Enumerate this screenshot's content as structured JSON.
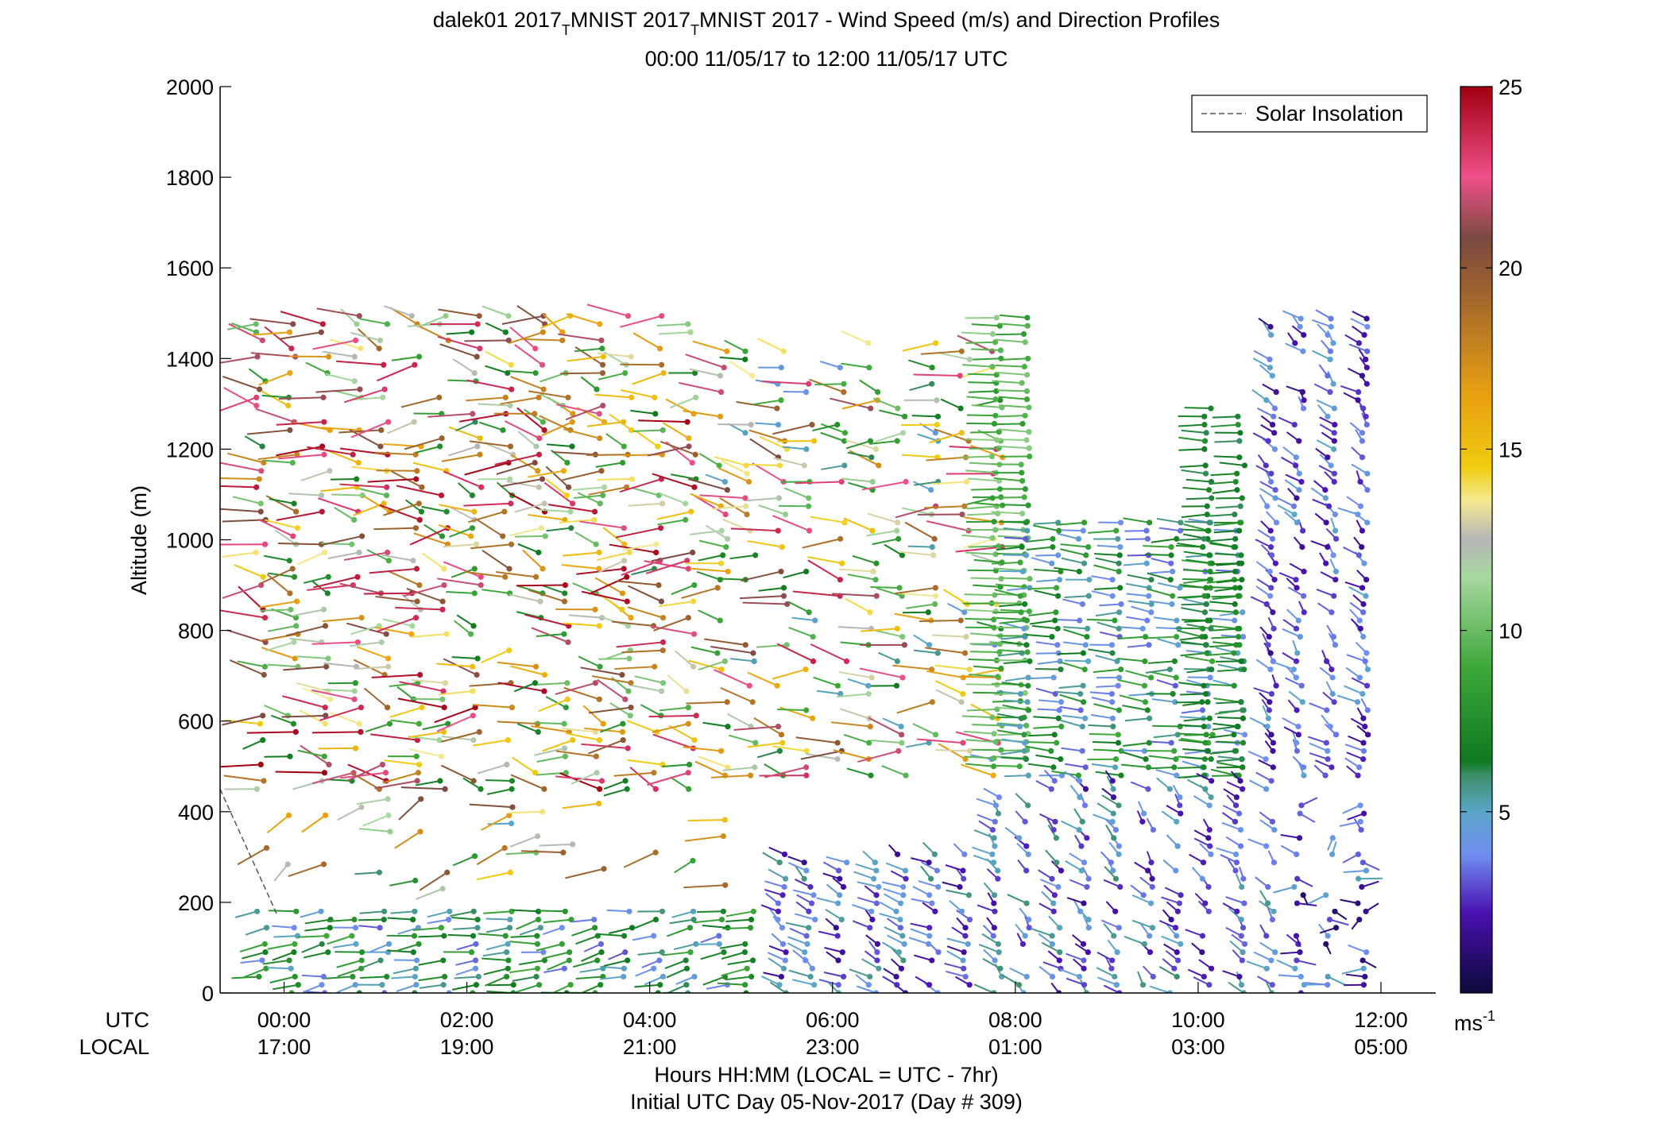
{
  "chart_data": {
    "type": "wind-barb-profile",
    "title_line1": "dalek01 2017",
    "title_sub1": "T",
    "title_mid": "MNIST 2017",
    "title_sub2": "T",
    "title_end": "MNIST 2017 - Wind Speed (m/s) and Direction Profiles",
    "subtitle": "00:00 11/05/17 to 12:00 11/05/17  UTC",
    "ylabel": "Altitude (m)",
    "ylim": [
      0,
      2000
    ],
    "yticks": [
      "0",
      "200",
      "400",
      "600",
      "800",
      "1000",
      "1200",
      "1400",
      "1600",
      "1800",
      "2000"
    ],
    "xlim_hours": [
      -0.7,
      12.6
    ],
    "xticks_utc": [
      "00:00",
      "02:00",
      "04:00",
      "06:00",
      "08:00",
      "10:00",
      "12:00"
    ],
    "xticks_local": [
      "17:00",
      "19:00",
      "21:00",
      "23:00",
      "01:00",
      "03:00",
      "05:00"
    ],
    "utc_label": "UTC",
    "local_label": "LOCAL",
    "xlabel_line1": "Hours HH:MM  (LOCAL = UTC - 7hr)",
    "xlabel_line2": "Initial UTC Day 05-Nov-2017 (Day # 309)",
    "legend": {
      "entry": "Solar Insolation",
      "placement": "top-right",
      "line_color": "#555555"
    },
    "colorbar": {
      "ticks": [
        "5",
        "10",
        "15",
        "20",
        "25"
      ],
      "unit_base": "ms",
      "unit_exp": "-1",
      "range": [
        0,
        25
      ],
      "stops": [
        {
          "v": 0,
          "c": "#0b0a3a"
        },
        {
          "v": 2.2,
          "c": "#4a10b0"
        },
        {
          "v": 3.8,
          "c": "#6f8df0"
        },
        {
          "v": 5.0,
          "c": "#5aa6c8"
        },
        {
          "v": 6.0,
          "c": "#3d8f6a"
        },
        {
          "v": 6.4,
          "c": "#0f7a20"
        },
        {
          "v": 9.0,
          "c": "#3ea83a"
        },
        {
          "v": 11.5,
          "c": "#a8d8a0"
        },
        {
          "v": 12.5,
          "c": "#b5b5b5"
        },
        {
          "v": 13.6,
          "c": "#f5ea90"
        },
        {
          "v": 14.5,
          "c": "#f0cc10"
        },
        {
          "v": 16.5,
          "c": "#e8a010"
        },
        {
          "v": 19.5,
          "c": "#9a6030"
        },
        {
          "v": 20.8,
          "c": "#7a4a40"
        },
        {
          "v": 22.5,
          "c": "#f0508a"
        },
        {
          "v": 25,
          "c": "#a00010"
        }
      ]
    },
    "solar_insolation": {
      "x": [
        -0.7,
        -0.07
      ],
      "y": [
        450,
        170
      ]
    },
    "profile_times_hours": [
      -0.25,
      0.1,
      0.45,
      0.8,
      1.1,
      1.45,
      1.75,
      2.1,
      2.45,
      2.8,
      3.1,
      3.45,
      3.75,
      4.1,
      4.45,
      4.8,
      5.1,
      5.45,
      5.75,
      6.1,
      6.45,
      6.75,
      7.1,
      7.45,
      7.8,
      8.1,
      8.45,
      8.75,
      9.1,
      9.45,
      9.75,
      10.1,
      10.45,
      10.8,
      11.1,
      11.45,
      11.8
    ],
    "regimes": [
      {
        "t0": -0.3,
        "t1": 4.6,
        "z0": 450,
        "z1": 1500,
        "spd": [
          6,
          25
        ],
        "dir": [
          230,
          330
        ],
        "density": 0.55
      },
      {
        "t0": 4.6,
        "t1": 7.8,
        "z0": 480,
        "z1": 1450,
        "spd": [
          4,
          24
        ],
        "dir": [
          240,
          320
        ],
        "density": 0.45
      },
      {
        "t0": 7.6,
        "t1": 8.1,
        "z0": 500,
        "z1": 1490,
        "spd": [
          8,
          11
        ],
        "dir": [
          265,
          280
        ],
        "density": 0.95
      },
      {
        "t0": 8.1,
        "t1": 10.7,
        "z0": 480,
        "z1": 1050,
        "spd": [
          3,
          9
        ],
        "dir": [
          255,
          300
        ],
        "density": 0.9
      },
      {
        "t0": 9.9,
        "t1": 10.7,
        "z0": 480,
        "z1": 1300,
        "spd": [
          6,
          8
        ],
        "dir": [
          255,
          285
        ],
        "density": 0.9
      },
      {
        "t0": 10.8,
        "t1": 12.1,
        "z0": 480,
        "z1": 1490,
        "spd": [
          1.5,
          5
        ],
        "dir": [
          300,
          350
        ],
        "density": 0.85
      },
      {
        "t0": -0.3,
        "t1": 2.7,
        "z0": 230,
        "z1": 430,
        "spd": [
          5,
          22
        ],
        "dir": [
          200,
          300
        ],
        "density": 0.18
      },
      {
        "t0": 2.8,
        "t1": 4.9,
        "z0": 220,
        "z1": 430,
        "spd": [
          8,
          20
        ],
        "dir": [
          220,
          280
        ],
        "density": 0.12
      },
      {
        "t0": -0.3,
        "t1": 5.2,
        "z0": 0,
        "z1": 180,
        "spd": [
          3,
          9
        ],
        "dir": [
          230,
          280
        ],
        "density": 0.85
      },
      {
        "t0": 5.2,
        "t1": 7.6,
        "z0": 0,
        "z1": 320,
        "spd": [
          1.5,
          6
        ],
        "dir": [
          290,
          340
        ],
        "density": 0.85
      },
      {
        "t0": 7.6,
        "t1": 10.9,
        "z0": 0,
        "z1": 470,
        "spd": [
          1.5,
          6
        ],
        "dir": [
          300,
          350
        ],
        "density": 0.75
      },
      {
        "t0": 10.9,
        "t1": 12.1,
        "z0": 0,
        "z1": 420,
        "spd": [
          0.8,
          6
        ],
        "dir": [
          0,
          360
        ],
        "density": 0.6
      }
    ]
  }
}
